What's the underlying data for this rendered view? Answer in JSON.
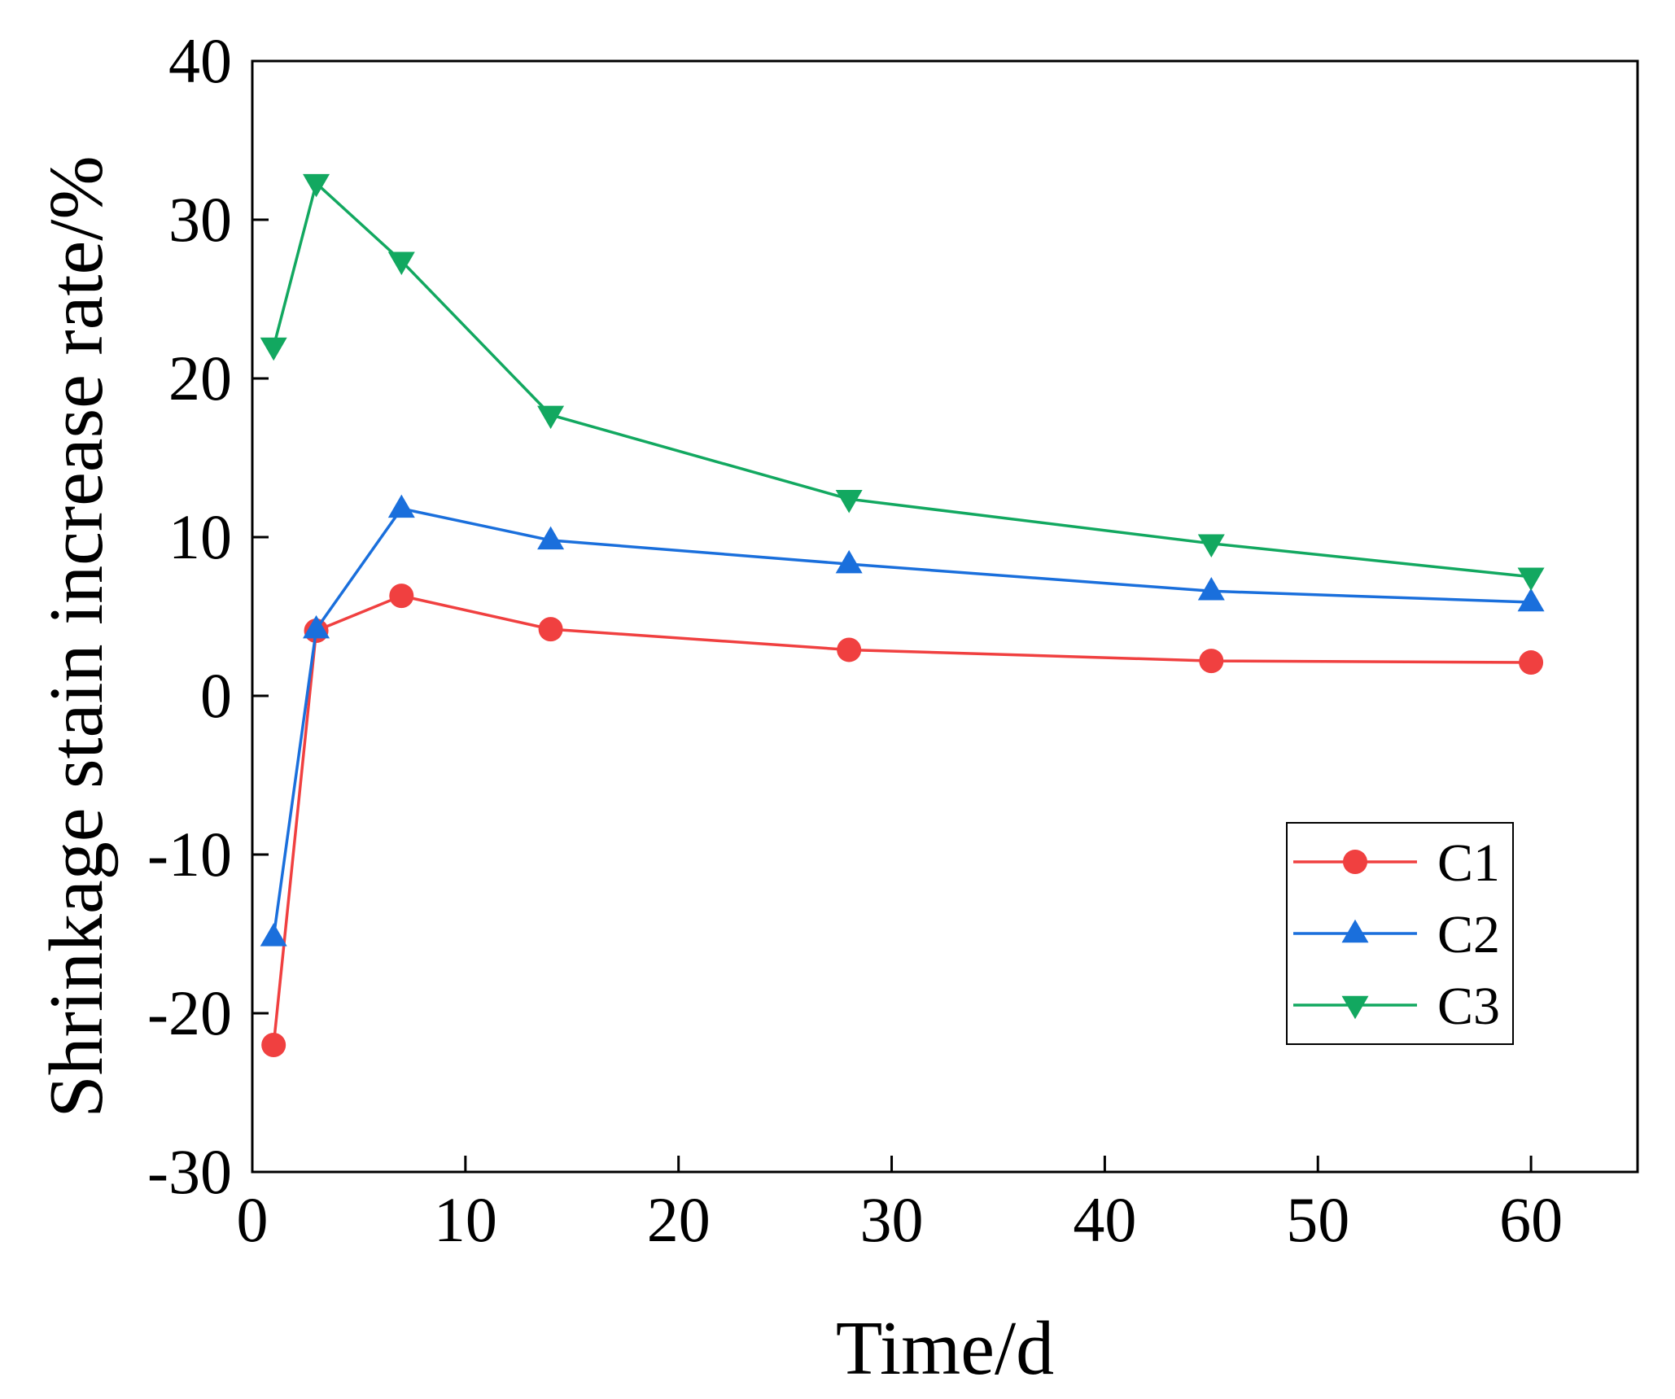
{
  "chart_data": {
    "type": "line",
    "title": "",
    "xlabel": "Time/d",
    "ylabel": "Shrinkage stain increase rate/%",
    "xlim": [
      0,
      65
    ],
    "ylim": [
      -30,
      40
    ],
    "xticks": [
      0,
      10,
      20,
      30,
      40,
      50,
      60
    ],
    "yticks": [
      -30,
      -20,
      -10,
      0,
      10,
      20,
      30,
      40
    ],
    "x": [
      1,
      3,
      7,
      14,
      28,
      45,
      60
    ],
    "grid": false,
    "legend_position": "bottom-right",
    "series": [
      {
        "name": "C1",
        "marker": "circle",
        "color": "#f04040",
        "values": [
          -22.0,
          4.1,
          6.3,
          4.2,
          2.9,
          2.2,
          2.1
        ]
      },
      {
        "name": "C2",
        "marker": "triangle-up",
        "color": "#1a6fdc",
        "values": [
          -15.2,
          4.2,
          11.8,
          9.8,
          8.3,
          6.6,
          5.9
        ]
      },
      {
        "name": "C3",
        "marker": "triangle-down",
        "color": "#12a860",
        "values": [
          22.0,
          32.3,
          27.4,
          17.7,
          12.4,
          9.6,
          7.5
        ]
      }
    ]
  }
}
